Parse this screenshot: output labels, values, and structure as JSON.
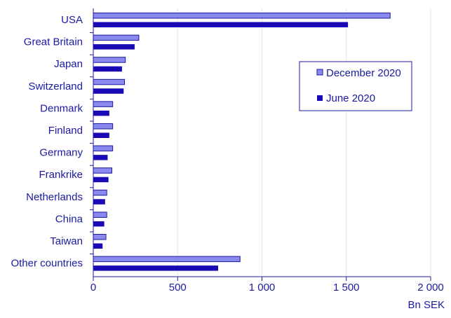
{
  "chart_data": {
    "type": "bar",
    "orientation": "horizontal",
    "categories": [
      "USA",
      "Great Britain",
      "Japan",
      "Switzerland",
      "Denmark",
      "Finland",
      "Germany",
      "Frankrike",
      "Netherlands",
      "China",
      "Taiwan",
      "Other countries"
    ],
    "series": [
      {
        "name": "December 2020",
        "color": "#8a8aee",
        "values": [
          1760,
          270,
          190,
          185,
          115,
          115,
          115,
          110,
          80,
          80,
          75,
          870
        ]
      },
      {
        "name": "June 2020",
        "color": "#1a0ab5",
        "values": [
          1510,
          245,
          170,
          180,
          95,
          95,
          85,
          90,
          70,
          65,
          55,
          740
        ]
      }
    ],
    "xlabel": "Bn SEK",
    "xlim": [
      0,
      2000
    ],
    "xticks": [
      0,
      500,
      1000,
      1500,
      2000
    ],
    "xtick_labels": [
      "0",
      "500",
      "1 000",
      "1 500",
      "2 000"
    ],
    "grid": true,
    "legend_position": "upper-right"
  },
  "colors": {
    "text": "#1a1aa0",
    "axis": "#1a1aa0",
    "grid": "#e4e4f2"
  }
}
